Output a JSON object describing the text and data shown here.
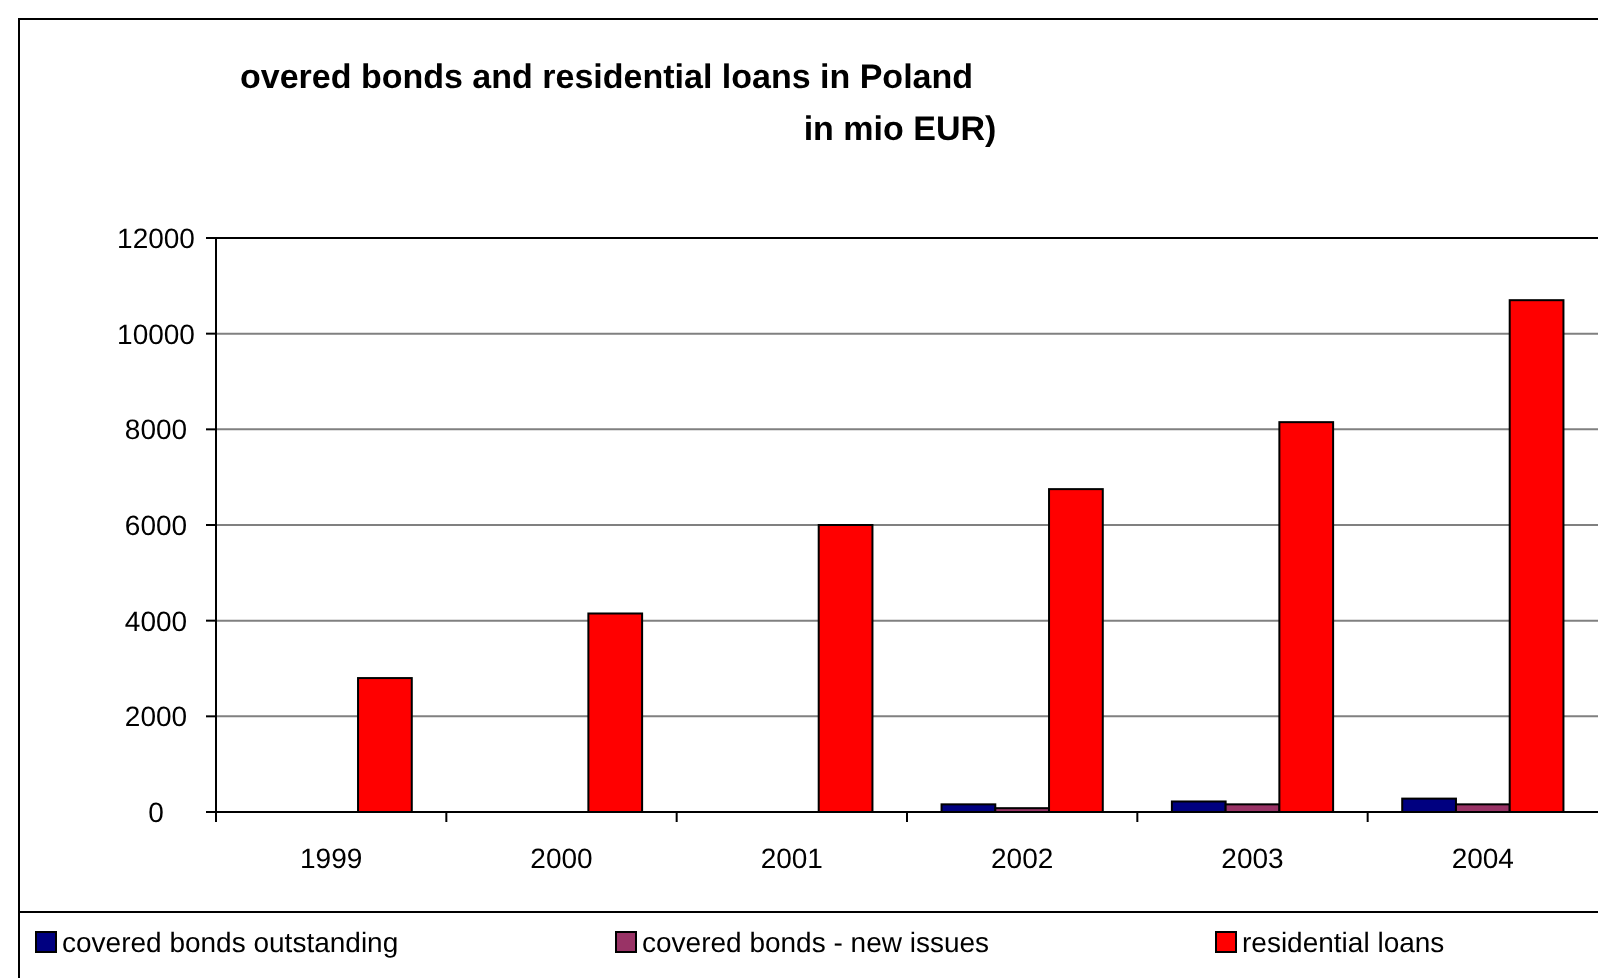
{
  "chart_data": {
    "type": "bar",
    "title": "overed bonds and residential loans in Poland",
    "subtitle": "in mio EUR)",
    "categories": [
      "1999",
      "2000",
      "2001",
      "2002",
      "2003",
      "2004"
    ],
    "series": [
      {
        "name": "covered bonds outstanding",
        "color": "#000080",
        "values": [
          0,
          0,
          0,
          160,
          220,
          280
        ]
      },
      {
        "name": "covered bonds - new issues",
        "color": "#993366",
        "values": [
          0,
          0,
          0,
          80,
          160,
          160
        ]
      },
      {
        "name": "residential loans",
        "color": "#ff0000",
        "values": [
          2800,
          4150,
          6000,
          6750,
          8150,
          10700
        ]
      }
    ],
    "ylim": [
      0,
      12000
    ],
    "yticks": [
      0,
      2000,
      4000,
      6000,
      8000,
      10000,
      12000
    ],
    "grid": "y",
    "legend": "bottom"
  }
}
